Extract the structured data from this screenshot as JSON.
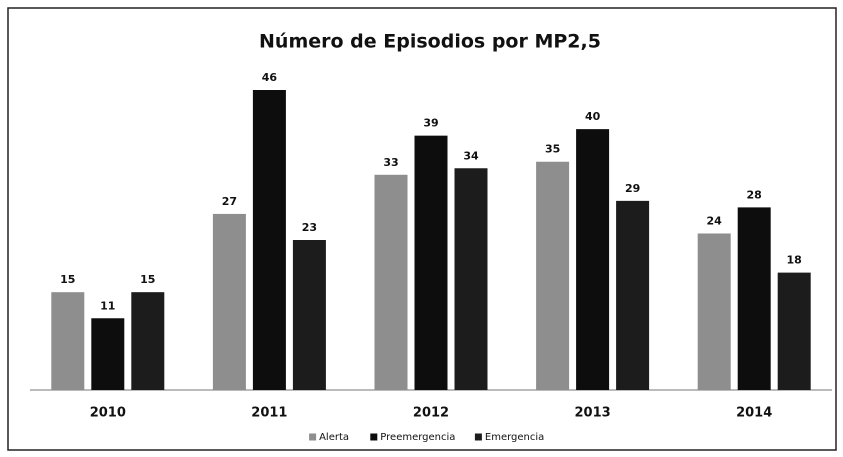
{
  "chart_data": {
    "type": "bar",
    "title": "Número de Episodios por MP2,5",
    "categories": [
      "2010",
      "2011",
      "2012",
      "2013",
      "2014"
    ],
    "series": [
      {
        "name": "Alerta",
        "color": "#8e8e8e",
        "values": [
          15,
          27,
          33,
          35,
          24
        ]
      },
      {
        "name": "Preemergencia",
        "color": "#0d0d0d",
        "values": [
          11,
          46,
          39,
          40,
          28
        ]
      },
      {
        "name": "Emergencia",
        "color": "#1c1c1c",
        "values": [
          15,
          23,
          34,
          29,
          18
        ]
      }
    ],
    "legend": "bottom"
  }
}
